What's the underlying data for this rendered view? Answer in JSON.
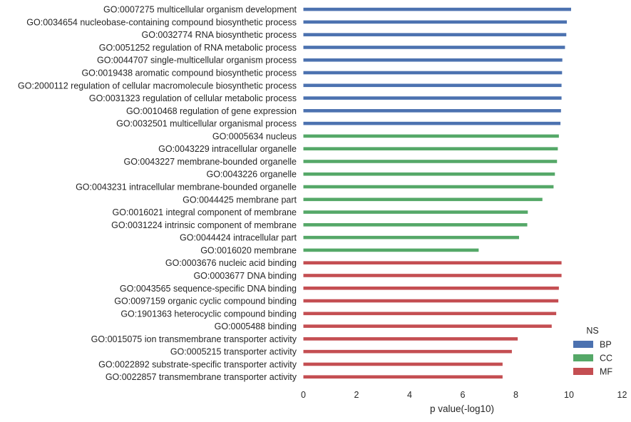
{
  "chart_data": {
    "type": "bar",
    "orientation": "horizontal",
    "xlabel": "p value(-log10)",
    "ylabel": "",
    "xlim": [
      0,
      12
    ],
    "xticks": [
      "0",
      "2",
      "4",
      "6",
      "8",
      "10",
      "12"
    ],
    "grid": false,
    "legend": {
      "title": "NS",
      "placement": "bottom-right",
      "entries": [
        {
          "name": "BP",
          "color": "#4c72b0"
        },
        {
          "name": "CC",
          "color": "#55a868"
        },
        {
          "name": "MF",
          "color": "#c44e52"
        }
      ]
    },
    "bars": [
      {
        "label": "GO:0007275 multicellular organism development",
        "value": 10.08,
        "group": "BP"
      },
      {
        "label": "GO:0034654 nucleobase-containing compound biosynthetic process",
        "value": 9.92,
        "group": "BP"
      },
      {
        "label": "GO:0032774 RNA biosynthetic process",
        "value": 9.9,
        "group": "BP"
      },
      {
        "label": "GO:0051252 regulation of RNA metabolic process",
        "value": 9.85,
        "group": "BP"
      },
      {
        "label": "GO:0044707 single-multicellular organism process",
        "value": 9.75,
        "group": "BP"
      },
      {
        "label": "GO:0019438 aromatic compound biosynthetic process",
        "value": 9.74,
        "group": "BP"
      },
      {
        "label": "GO:2000112 regulation of cellular macromolecule biosynthetic process",
        "value": 9.72,
        "group": "BP"
      },
      {
        "label": "GO:0031323 regulation of cellular metabolic process",
        "value": 9.72,
        "group": "BP"
      },
      {
        "label": "GO:0010468 regulation of gene expression",
        "value": 9.7,
        "group": "BP"
      },
      {
        "label": "GO:0032501 multicellular organismal process",
        "value": 9.68,
        "group": "BP"
      },
      {
        "label": "GO:0005634 nucleus",
        "value": 9.62,
        "group": "CC"
      },
      {
        "label": "GO:0043229 intracellular organelle",
        "value": 9.58,
        "group": "CC"
      },
      {
        "label": "GO:0043227 membrane-bounded organelle",
        "value": 9.55,
        "group": "CC"
      },
      {
        "label": "GO:0043226 organelle",
        "value": 9.47,
        "group": "CC"
      },
      {
        "label": "GO:0043231 intracellular membrane-bounded organelle",
        "value": 9.42,
        "group": "CC"
      },
      {
        "label": "GO:0044425 membrane part",
        "value": 9.0,
        "group": "CC"
      },
      {
        "label": "GO:0016021 integral component of membrane",
        "value": 8.45,
        "group": "CC"
      },
      {
        "label": "GO:0031224 intrinsic component of membrane",
        "value": 8.43,
        "group": "CC"
      },
      {
        "label": "GO:0044424 intracellular part",
        "value": 8.12,
        "group": "CC"
      },
      {
        "label": "GO:0016020 membrane",
        "value": 6.6,
        "group": "CC"
      },
      {
        "label": "GO:0003676 nucleic acid binding",
        "value": 9.72,
        "group": "MF"
      },
      {
        "label": "GO:0003677 DNA binding",
        "value": 9.72,
        "group": "MF"
      },
      {
        "label": "GO:0043565 sequence-specific DNA binding",
        "value": 9.62,
        "group": "MF"
      },
      {
        "label": "GO:0097159 organic cyclic compound binding",
        "value": 9.6,
        "group": "MF"
      },
      {
        "label": "GO:1901363 heterocyclic compound binding",
        "value": 9.52,
        "group": "MF"
      },
      {
        "label": "GO:0005488 binding",
        "value": 9.35,
        "group": "MF"
      },
      {
        "label": "GO:0015075 ion transmembrane transporter activity",
        "value": 8.07,
        "group": "MF"
      },
      {
        "label": "GO:0005215 transporter activity",
        "value": 7.85,
        "group": "MF"
      },
      {
        "label": "GO:0022892 substrate-specific transporter activity",
        "value": 7.5,
        "group": "MF"
      },
      {
        "label": "GO:0022857 transmembrane transporter activity",
        "value": 7.5,
        "group": "MF"
      }
    ]
  }
}
